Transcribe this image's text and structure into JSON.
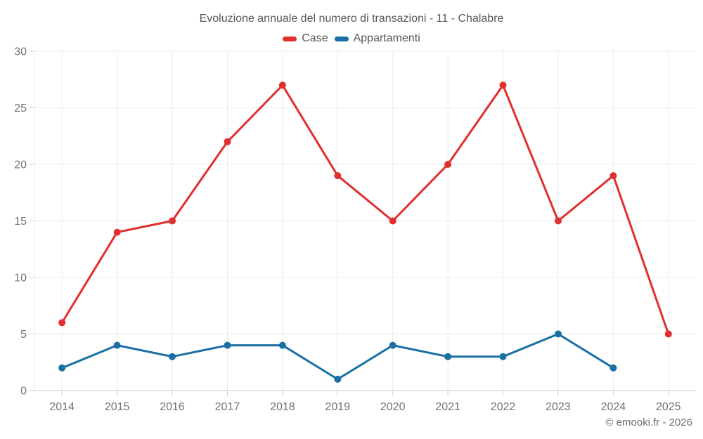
{
  "footer": {
    "credit": "© emooki.fr - 2026"
  },
  "colors": {
    "background": "#ffffff",
    "grid": "#ececec",
    "axis": "#c9c9c9",
    "tick_text": "#737373",
    "title_text": "#58585a",
    "footer_text": "#6e6f71",
    "case_red": "#e12e2e",
    "appartamenti_blue": "#1a6fa4"
  },
  "chart_data": {
    "type": "line",
    "title": "Evoluzione annuale del numero di transazioni - 11 - Chalabre",
    "xlabel": "",
    "ylabel": "",
    "categories": [
      "2014",
      "2015",
      "2016",
      "2017",
      "2018",
      "2019",
      "2020",
      "2021",
      "2022",
      "2023",
      "2024",
      "2025"
    ],
    "series": [
      {
        "name": "Case",
        "color": "#e12e2e",
        "values": [
          6,
          14,
          15,
          22,
          27,
          19,
          15,
          20,
          27,
          15,
          19,
          5
        ]
      },
      {
        "name": "Appartamenti",
        "color": "#1a6fa4",
        "values": [
          2,
          4,
          3,
          4,
          4,
          1,
          4,
          3,
          3,
          5,
          2,
          null
        ]
      }
    ],
    "ylim": [
      0,
      30
    ],
    "yticks": [
      0,
      5,
      10,
      15,
      20,
      25,
      30
    ],
    "grid": true,
    "legend_position": "top",
    "marker": "circle"
  }
}
